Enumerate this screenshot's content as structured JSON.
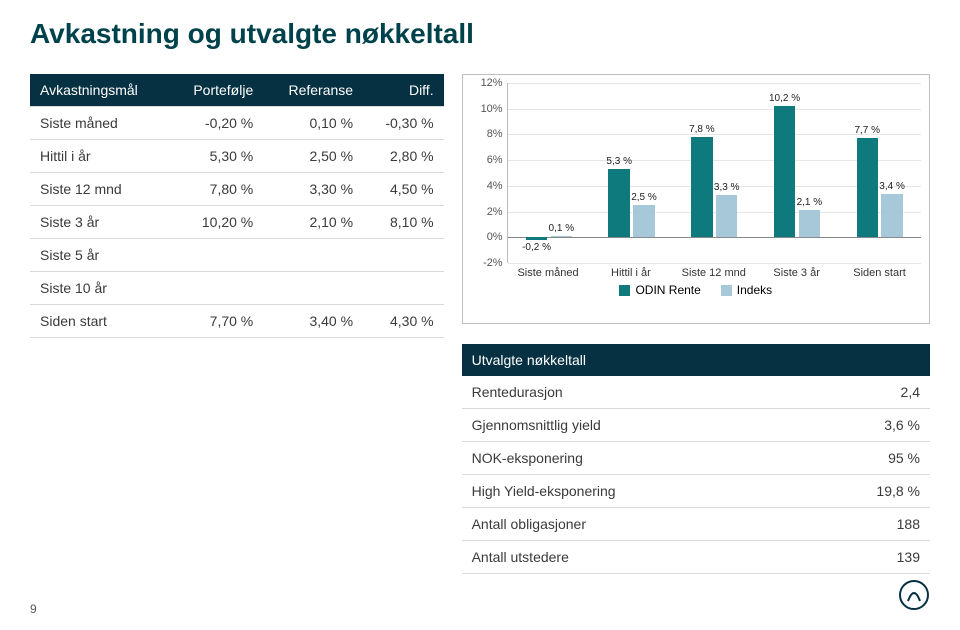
{
  "title": "Avkastning og utvalgte nøkkeltall",
  "page_number": "9",
  "colors": {
    "portfolio": "#0f7a7e",
    "index": "#a7c8d8",
    "header_bg": "#063142",
    "grid": "#e6e6e6"
  },
  "perf_table": {
    "headers": [
      "Avkastningsmål",
      "Portefølje",
      "Referanse",
      "Diff."
    ],
    "rows": [
      [
        "Siste måned",
        "-0,20 %",
        "0,10 %",
        "-0,30 %"
      ],
      [
        "Hittil i år",
        "5,30 %",
        "2,50 %",
        "2,80 %"
      ],
      [
        "Siste 12 mnd",
        "7,80 %",
        "3,30 %",
        "4,50 %"
      ],
      [
        "Siste 3 år",
        "10,20 %",
        "2,10 %",
        "8,10 %"
      ],
      [
        "Siste 5 år",
        "",
        "",
        ""
      ],
      [
        "Siste 10 år",
        "",
        "",
        ""
      ],
      [
        "Siden start",
        "7,70 %",
        "3,40 %",
        "4,30 %"
      ]
    ]
  },
  "chart": {
    "type": "bar",
    "ymin": -2,
    "ymax": 12,
    "ystep": 2,
    "y_ticks": [
      "12%",
      "10%",
      "8%",
      "6%",
      "4%",
      "2%",
      "0%",
      "-2%"
    ],
    "categories": [
      "Siste måned",
      "Hittil i år",
      "Siste 12 mnd",
      "Siste 3 år",
      "Siden start"
    ],
    "series": {
      "portfolio": {
        "label": "ODIN Rente",
        "values": [
          -0.2,
          5.3,
          7.8,
          10.2,
          7.7
        ],
        "value_labels": [
          "-0,2 %",
          "5,3 %",
          "7,8 %",
          "10,2 %",
          "7,7 %"
        ]
      },
      "index": {
        "label": "Indeks",
        "values": [
          0.1,
          2.5,
          3.3,
          2.1,
          3.4
        ],
        "value_labels": [
          "0,1 %",
          "2,5 %",
          "3,3 %",
          "2,1 %",
          "3,4 %"
        ]
      }
    },
    "label_fontsize": 10
  },
  "key_figures": {
    "header": "Utvalgte nøkkeltall",
    "rows": [
      [
        "Rentedurasjon",
        "2,4"
      ],
      [
        "Gjennomsnittlig yield",
        "3,6 %"
      ],
      [
        "NOK-eksponering",
        "95 %"
      ],
      [
        "High Yield-eksponering",
        "19,8 %"
      ],
      [
        "Antall obligasjoner",
        "188"
      ],
      [
        "Antall utstedere",
        "139"
      ]
    ]
  },
  "legend": {
    "a": "ODIN Rente",
    "b": "Indeks"
  }
}
